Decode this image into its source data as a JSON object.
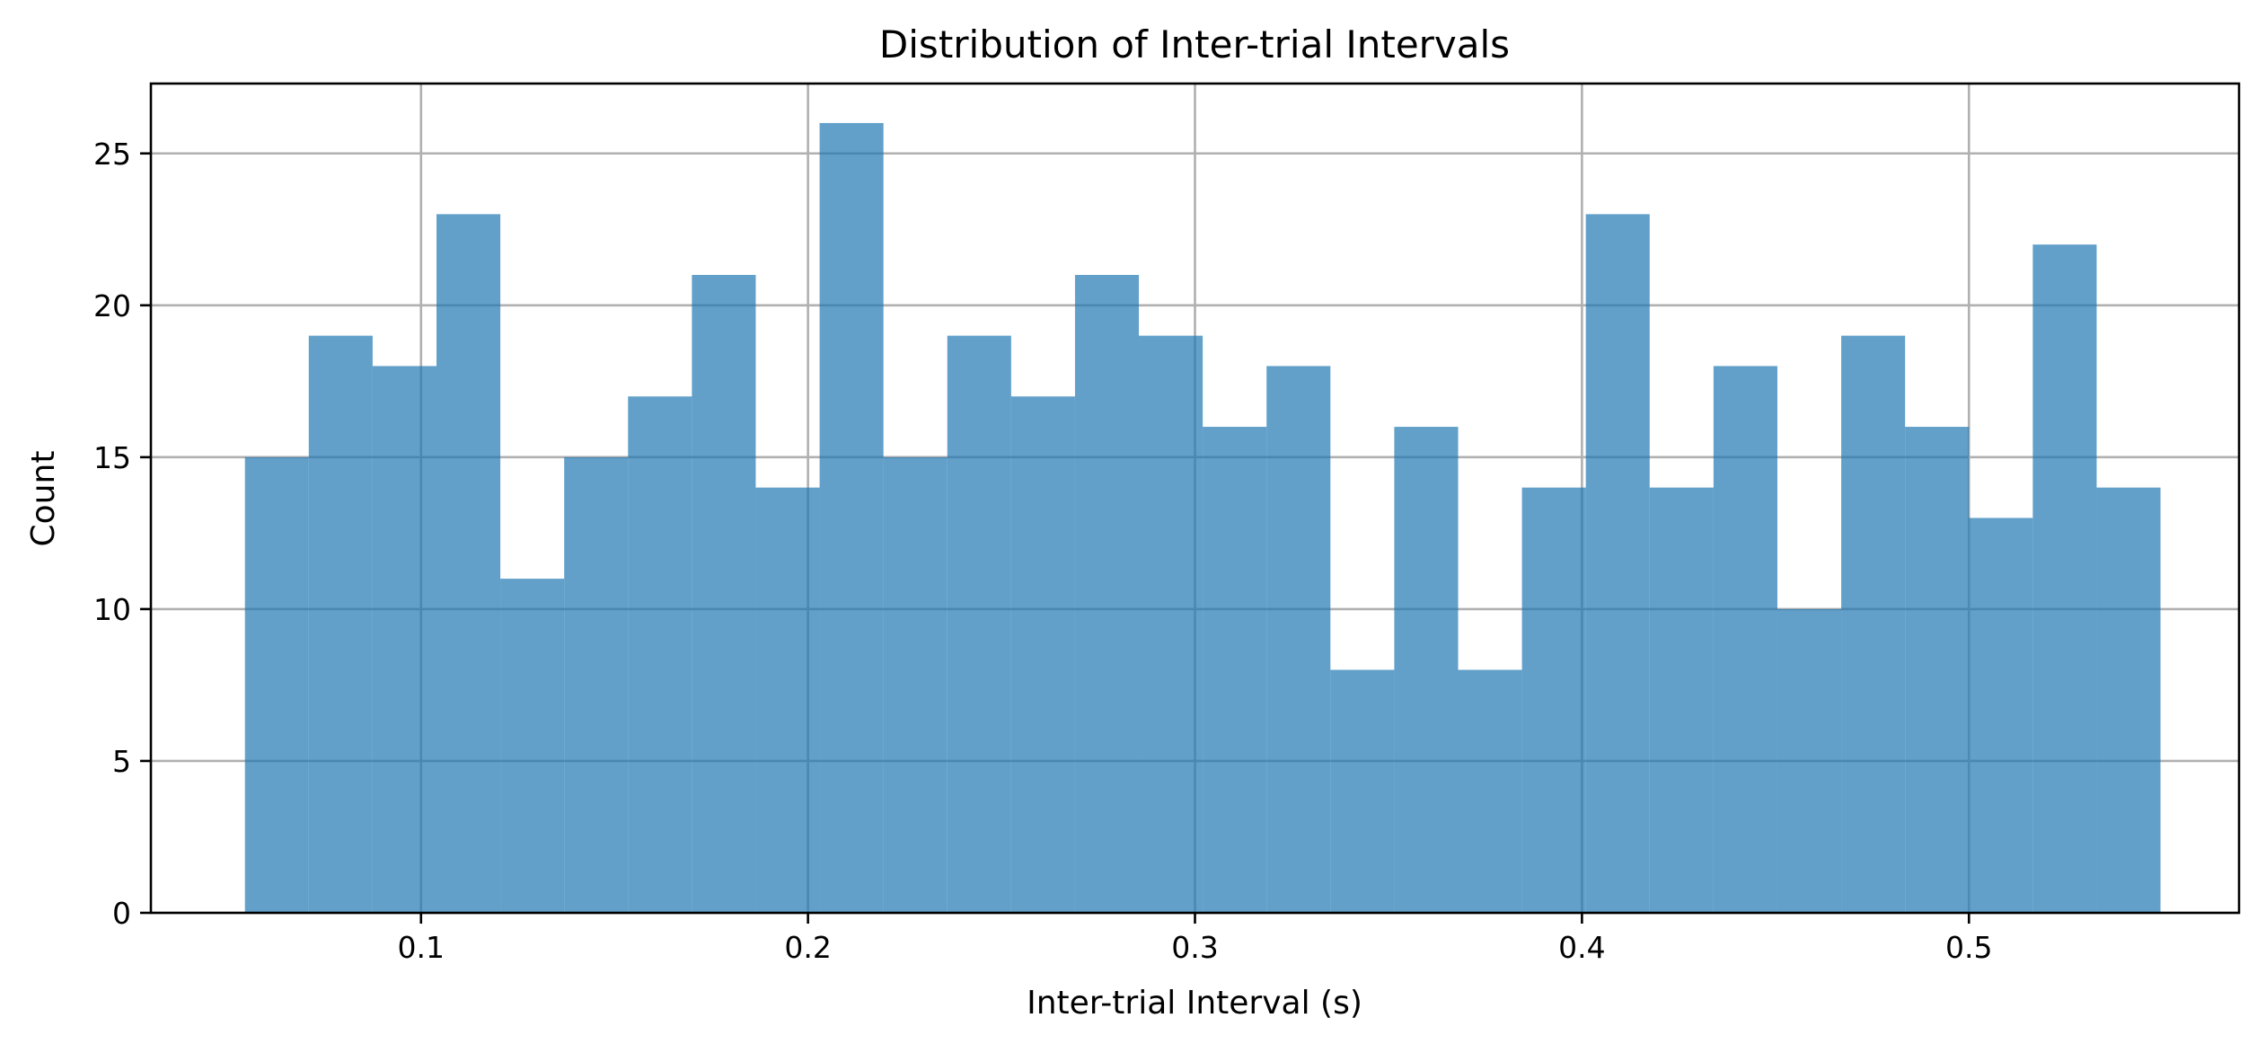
{
  "chart_data": {
    "type": "histogram",
    "title": "Distribution of Inter-trial Intervals",
    "xlabel": "Inter-trial Interval (s)",
    "ylabel": "Count",
    "xlim": [
      0.0302,
      0.5698
    ],
    "ylim": [
      0,
      27.3
    ],
    "xticks": [
      {
        "value": 0.1,
        "label": "0.1"
      },
      {
        "value": 0.2,
        "label": "0.2"
      },
      {
        "value": 0.3,
        "label": "0.3"
      },
      {
        "value": 0.4,
        "label": "0.4"
      },
      {
        "value": 0.5,
        "label": "0.5"
      }
    ],
    "yticks": [
      {
        "value": 0,
        "label": "0"
      },
      {
        "value": 5,
        "label": "5"
      },
      {
        "value": 10,
        "label": "10"
      },
      {
        "value": 15,
        "label": "15"
      },
      {
        "value": 20,
        "label": "20"
      },
      {
        "value": 25,
        "label": "25"
      }
    ],
    "grid": true,
    "bar_color": "#1f77b4",
    "bar_alpha": 0.7,
    "bins": {
      "start": 0.0545,
      "end": 0.5495,
      "counts": [
        15,
        19,
        18,
        23,
        11,
        15,
        17,
        21,
        14,
        26,
        15,
        19,
        17,
        21,
        19,
        16,
        18,
        8,
        16,
        8,
        14,
        23,
        14,
        18,
        10,
        19,
        16,
        13,
        22,
        14
      ]
    }
  }
}
